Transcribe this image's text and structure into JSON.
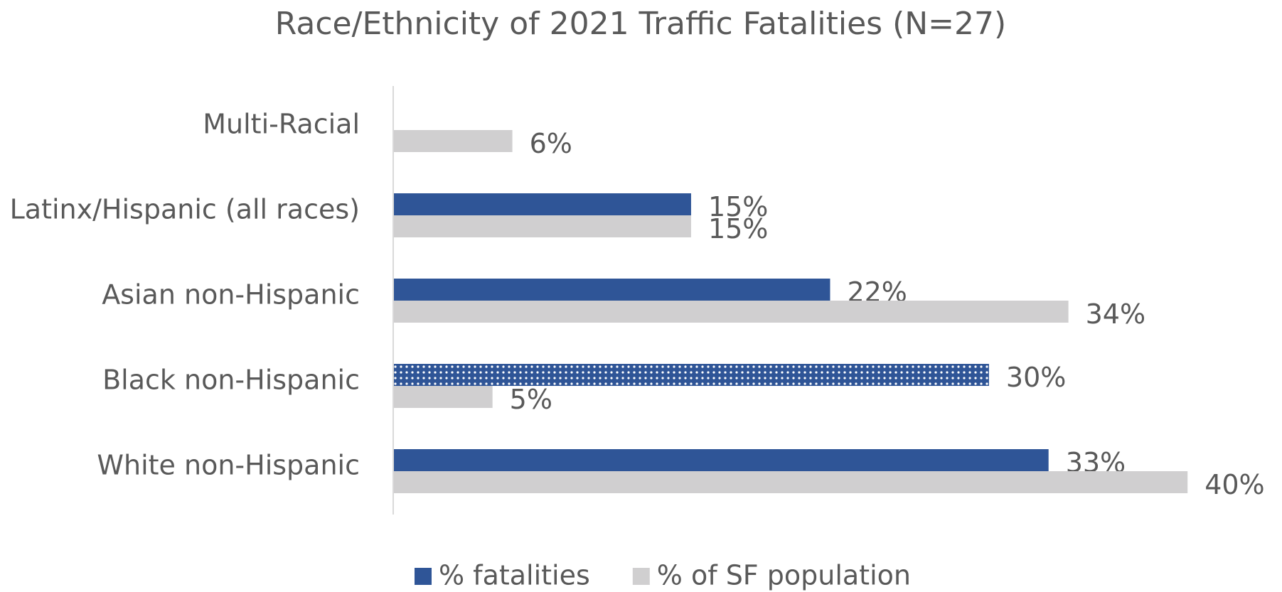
{
  "chart_data": {
    "type": "hbar",
    "title": "Race/Ethnicity of 2021 Traffic Fatalities (N=27)",
    "categories": [
      "Multi-Racial",
      "Latinx/Hispanic (all races)",
      "Asian non-Hispanic",
      "Black non-Hispanic",
      "White non-Hispanic"
    ],
    "series": [
      {
        "name": "% fatalities",
        "color": "#2f5597",
        "values": [
          null,
          15,
          22,
          30,
          33
        ],
        "value_labels": [
          null,
          "15%",
          "22%",
          "30%",
          "33%"
        ],
        "patterns": [
          null,
          null,
          null,
          "dots",
          null
        ]
      },
      {
        "name": "% of SF population",
        "color": "#d0cfd0",
        "values": [
          6,
          15,
          34,
          5,
          40
        ],
        "value_labels": [
          "6%",
          "15%",
          "34%",
          "5%",
          "40%"
        ]
      }
    ],
    "xlim": [
      0,
      42
    ],
    "legend": "bottom"
  }
}
